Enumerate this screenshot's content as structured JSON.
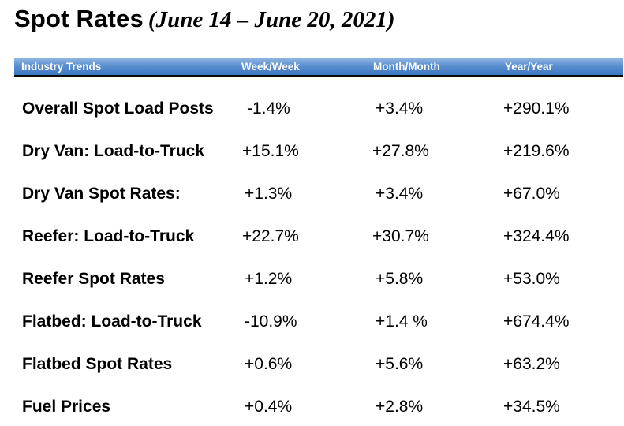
{
  "title": {
    "main": "Spot Rates",
    "sub": "(June 14 – June 20, 2021)"
  },
  "table": {
    "headers": [
      "Industry Trends",
      "Week/Week",
      "Month/Month",
      "Year/Year"
    ],
    "header_color": "#4a84c9",
    "rows": [
      {
        "label": "Overall Spot Load Posts",
        "week": "-1.4%",
        "month": "+3.4%",
        "year": "+290.1%"
      },
      {
        "label": "Dry Van: Load-to-Truck",
        "week": "+15.1%",
        "month": "+27.8%",
        "year": "+219.6%"
      },
      {
        "label": "Dry Van Spot Rates:",
        "week": "+1.3%",
        "month": "+3.4%",
        "year": "+67.0%"
      },
      {
        "label": "Reefer: Load-to-Truck",
        "week": "+22.7%",
        "month": "+30.7%",
        "year": "+324.4%"
      },
      {
        "label": "Reefer Spot Rates",
        "week": "+1.2%",
        "month": "+5.8%",
        "year": "+53.0%"
      },
      {
        "label": "Flatbed: Load-to-Truck",
        "week": "-10.9%",
        "month": "+1.4 %",
        "year": "+674.4%"
      },
      {
        "label": "Flatbed Spot Rates",
        "week": "+0.6%",
        "month": "+5.6%",
        "year": "+63.2%"
      },
      {
        "label": "Fuel Prices",
        "week": "+0.4%",
        "month": "+2.8%",
        "year": "+34.5%"
      }
    ]
  }
}
